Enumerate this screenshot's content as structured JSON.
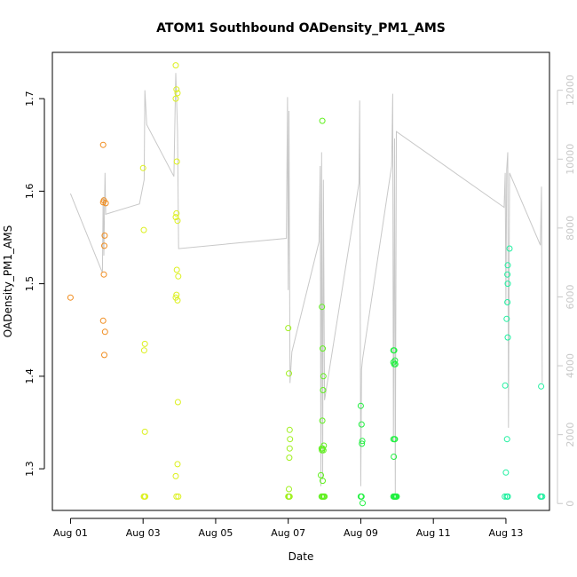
{
  "chart_data": {
    "type": "scatter",
    "title": "ATOM1 Southbound OADensity_PM1_AMS",
    "xlabel": "Date",
    "ylabel": "OADensity_PM1_AMS",
    "xlim": [
      -0.5,
      13.2
    ],
    "ylim": [
      1.255,
      1.75
    ],
    "y2lim": [
      -200,
      13100
    ],
    "x_ticks": [
      {
        "value": 0,
        "label": "Aug 01"
      },
      {
        "value": 2,
        "label": "Aug 03"
      },
      {
        "value": 4,
        "label": "Aug 05"
      },
      {
        "value": 6,
        "label": "Aug 07"
      },
      {
        "value": 8,
        "label": "Aug 09"
      },
      {
        "value": 10,
        "label": "Aug 11"
      },
      {
        "value": 12,
        "label": "Aug 13"
      }
    ],
    "y_ticks": [
      {
        "value": 1.3,
        "label": "1.3"
      },
      {
        "value": 1.4,
        "label": "1.4"
      },
      {
        "value": 1.5,
        "label": "1.5"
      },
      {
        "value": 1.6,
        "label": "1.6"
      },
      {
        "value": 1.7,
        "label": "1.7"
      }
    ],
    "y2_ticks": [
      {
        "value": 0,
        "label": "0"
      },
      {
        "value": 2000,
        "label": "2000"
      },
      {
        "value": 4000,
        "label": "4000"
      },
      {
        "value": 6000,
        "label": "6000"
      },
      {
        "value": 8000,
        "label": "8000"
      },
      {
        "value": 10000,
        "label": "10000"
      },
      {
        "value": 12000,
        "label": "12000"
      }
    ],
    "grid": false,
    "colors": {
      "axis": "#000000",
      "right_axis": "#c8c8c8",
      "line": "#c8c8c8",
      "day1": "#f08c1e",
      "day2": "#dcf01e",
      "day3": "#a0f01e",
      "day4": "#60f01e",
      "day5": "#20f040",
      "day6": "#20f0a0"
    },
    "series": [
      {
        "color_key": "day1",
        "x": [
          0.0,
          0.9,
          0.92,
          0.9,
          0.94,
          0.93,
          0.92,
          0.9,
          0.95,
          0.93,
          0.97
        ],
        "y": [
          1.485,
          1.65,
          1.59,
          1.588,
          1.552,
          1.541,
          1.51,
          1.46,
          1.448,
          1.423,
          1.587
        ]
      },
      {
        "color_key": "day2",
        "x": [
          2.0,
          2.02,
          2.05,
          2.03,
          2.05,
          2.02,
          2.04,
          2.06,
          2.9,
          2.92,
          2.95,
          2.9,
          2.93,
          2.92,
          2.9,
          2.95,
          2.93,
          2.97,
          2.9,
          2.95,
          2.92,
          2.96,
          2.9,
          2.95,
          2.92,
          2.97
        ],
        "y": [
          1.625,
          1.558,
          1.435,
          1.428,
          1.34,
          1.27,
          1.27,
          1.27,
          1.736,
          1.71,
          1.706,
          1.7,
          1.632,
          1.576,
          1.572,
          1.568,
          1.515,
          1.508,
          1.485,
          1.482,
          1.488,
          1.372,
          1.292,
          1.305,
          1.27,
          1.27
        ]
      },
      {
        "color_key": "day3",
        "x": [
          6.0,
          6.02,
          6.04,
          6.05,
          6.04,
          6.03,
          6.02,
          6.01,
          6.0,
          6.02,
          6.04
        ],
        "y": [
          1.452,
          1.403,
          1.342,
          1.332,
          1.322,
          1.312,
          1.278,
          1.27,
          1.27,
          1.27,
          1.27
        ]
      },
      {
        "color_key": "day4",
        "x": [
          6.94,
          6.93,
          6.95,
          6.97,
          6.96,
          6.94,
          6.98,
          6.92,
          6.95,
          6.93,
          6.97,
          6.9,
          6.95,
          6.96,
          6.92,
          6.98,
          7.0,
          6.93,
          6.96
        ],
        "y": [
          1.676,
          1.475,
          1.43,
          1.4,
          1.385,
          1.352,
          1.325,
          1.322,
          1.322,
          1.32,
          1.32,
          1.293,
          1.287,
          1.27,
          1.27,
          1.27,
          1.27,
          1.27,
          1.27
        ]
      },
      {
        "color_key": "day5",
        "x": [
          8.0,
          8.02,
          8.04,
          8.03,
          8.02,
          8.0,
          8.05,
          8.9,
          8.92,
          8.94,
          8.9,
          8.92,
          8.95,
          8.9,
          8.93,
          8.94,
          8.91,
          8.95,
          8.9,
          8.93,
          8.97,
          8.95,
          8.92,
          8.96,
          8.94,
          8.99
        ],
        "y": [
          1.368,
          1.348,
          1.33,
          1.327,
          1.27,
          1.27,
          1.263,
          1.428,
          1.428,
          1.417,
          1.415,
          1.413,
          1.413,
          1.332,
          1.332,
          1.332,
          1.313,
          1.27,
          1.27,
          1.27,
          1.27,
          1.27,
          1.27,
          1.27,
          1.27,
          1.27
        ]
      },
      {
        "color_key": "day6",
        "x": [
          12.1,
          12.05,
          12.04,
          12.05,
          12.04,
          12.02,
          12.05,
          11.98,
          12.03,
          12.05,
          11.97,
          12.02,
          12.0,
          12.05,
          12.97,
          12.95,
          12.97,
          13.0
        ],
        "y": [
          1.538,
          1.52,
          1.51,
          1.5,
          1.48,
          1.462,
          1.442,
          1.39,
          1.332,
          1.27,
          1.27,
          1.27,
          1.296,
          1.27,
          1.389,
          1.27,
          1.27,
          1.27
        ]
      }
    ],
    "line_series": {
      "axis": "right",
      "x": [
        0.0,
        0.88,
        0.9,
        0.92,
        0.95,
        0.97,
        1.9,
        2.03,
        2.05,
        2.1,
        2.85,
        2.9,
        2.95,
        2.98,
        5.95,
        5.98,
        6.0,
        6.02,
        6.05,
        6.1,
        6.85,
        6.88,
        6.9,
        6.92,
        6.95,
        6.97,
        7.0,
        7.95,
        7.97,
        8.0,
        8.02,
        8.05,
        8.85,
        8.88,
        8.9,
        8.93,
        8.95,
        8.98,
        11.95,
        11.98,
        12.0,
        12.02,
        12.05,
        12.07,
        12.1,
        12.95,
        12.98,
        13.0
      ],
      "y": [
        9000,
        6700,
        8900,
        7200,
        9600,
        8400,
        8700,
        9400,
        12000,
        11000,
        9500,
        12500,
        10800,
        7400,
        7700,
        11800,
        6200,
        11400,
        3500,
        4400,
        7600,
        9800,
        500,
        10200,
        700,
        9400,
        3000,
        9300,
        11700,
        500,
        3900,
        4200,
        9800,
        11900,
        1800,
        10600,
        300,
        10800,
        8600,
        9600,
        5800,
        9700,
        10200,
        2200,
        9600,
        7500,
        9200,
        3500
      ]
    }
  }
}
